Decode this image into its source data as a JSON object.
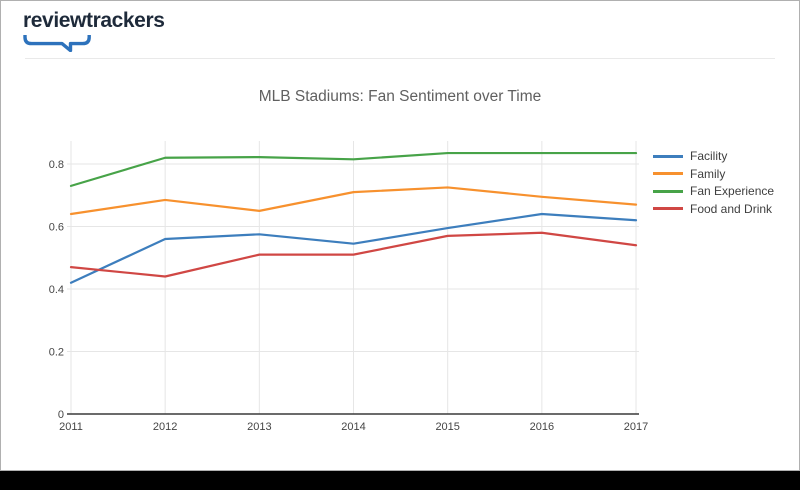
{
  "logo": {
    "text": "reviewtrackers"
  },
  "colors": {
    "logo_text": "#1e2a3a",
    "logo_bracket_blue": "#2d72bc",
    "grid": "#e6e6e6",
    "axis": "#3a3a3a"
  },
  "chart_data": {
    "type": "line",
    "title": "MLB Stadiums: Fan Sentiment over Time",
    "xlabel": "",
    "ylabel": "",
    "x": [
      2011,
      2012,
      2013,
      2014,
      2015,
      2016,
      2017
    ],
    "x_tick_labels": [
      "2011",
      "2012",
      "2013",
      "2014",
      "2015",
      "2016",
      "2017"
    ],
    "yticks": [
      0,
      0.2,
      0.4,
      0.6,
      0.8
    ],
    "ytick_labels": [
      "0",
      "0.2",
      "0.4",
      "0.6",
      "0.8"
    ],
    "ylim": [
      0,
      0.9
    ],
    "grid": true,
    "legend_position": "right",
    "series": [
      {
        "name": "Facility",
        "color": "#3d7ebd",
        "values": [
          0.42,
          0.56,
          0.575,
          0.545,
          0.595,
          0.64,
          0.62
        ]
      },
      {
        "name": "Family",
        "color": "#f7912e",
        "values": [
          0.64,
          0.685,
          0.65,
          0.71,
          0.725,
          0.695,
          0.67
        ]
      },
      {
        "name": "Fan Experience",
        "color": "#47a348",
        "values": [
          0.73,
          0.82,
          0.822,
          0.815,
          0.835,
          0.835,
          0.835
        ]
      },
      {
        "name": "Food and Drink",
        "color": "#d04744",
        "values": [
          0.47,
          0.44,
          0.51,
          0.51,
          0.57,
          0.58,
          0.54
        ]
      }
    ]
  }
}
